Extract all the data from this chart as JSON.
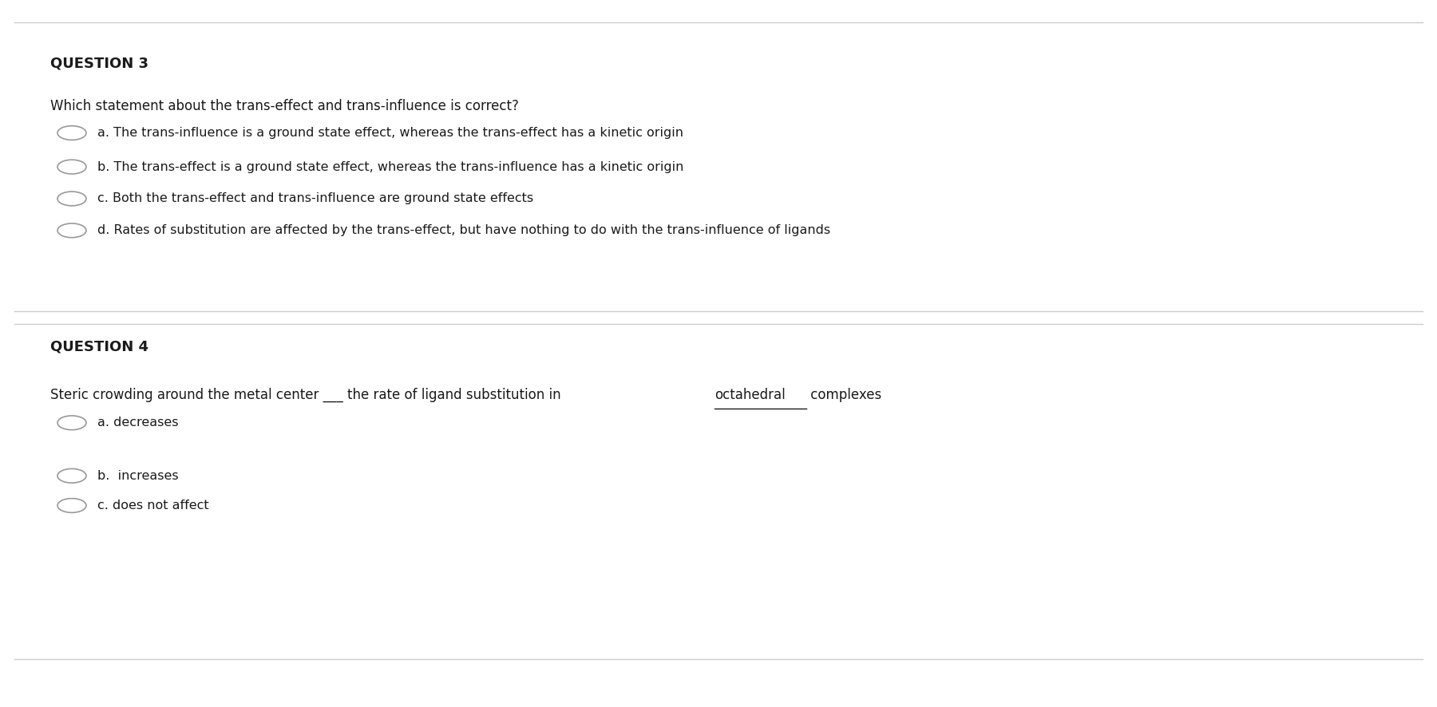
{
  "bg_color": "#f5f5f0",
  "content_bg": "#ffffff",
  "title_color": "#1a1a1a",
  "text_color": "#1a1a1a",
  "separator_color": "#cccccc",
  "q3_title": "QUESTION 3",
  "q3_question": "Which statement about the trans-effect and trans-influence is correct?",
  "q3_options": [
    "a. The trans-influence is a ground state effect, whereas the trans-effect has a kinetic origin",
    "b. The trans-effect is a ground state effect, whereas the trans-influence has a kinetic origin",
    "c. Both the trans-effect and trans-influence are ground state effects",
    "d. Rates of substitution are affected by the trans-effect, but have nothing to do with the trans-influence of ligands"
  ],
  "q4_title": "QUESTION 4",
  "q4_part1": "Steric crowding around the metal center ___ the rate of ligand substitution in ",
  "q4_part2": "octahedral",
  "q4_part3": " complexes",
  "q4_options": [
    "a. decreases",
    "b.  increases",
    "c. does not affect"
  ],
  "figsize": [
    18.0,
    8.86
  ],
  "dpi": 100
}
